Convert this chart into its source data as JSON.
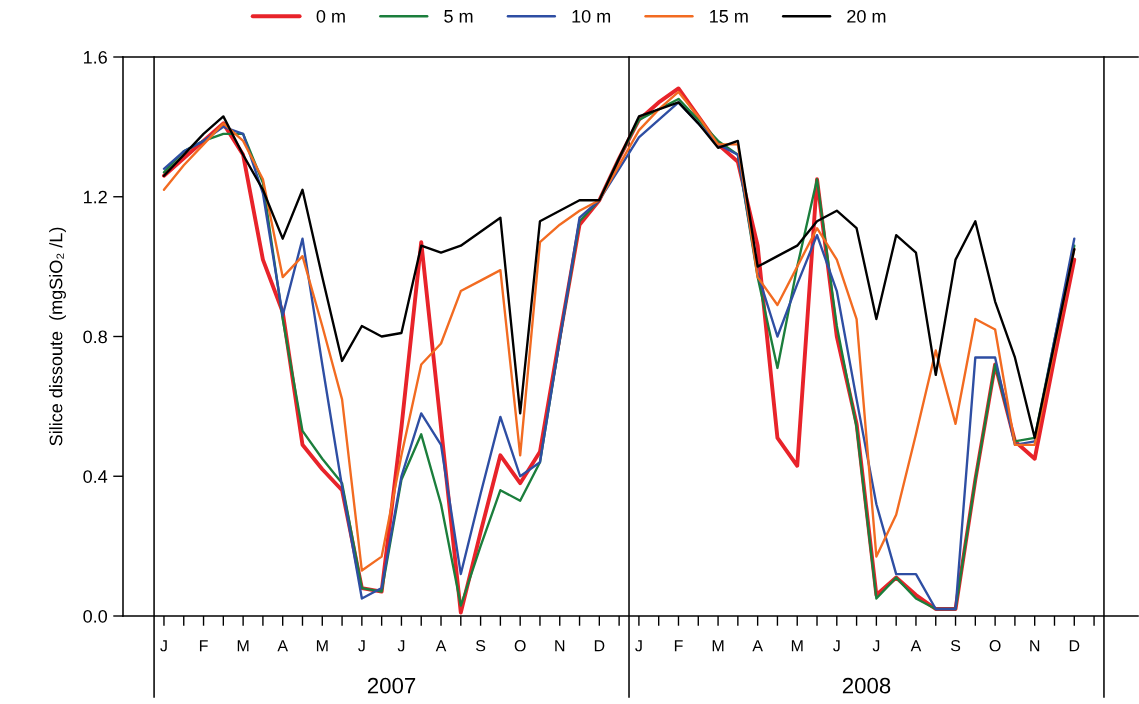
{
  "chart_data": {
    "type": "line",
    "ylabel": "Silice dissoute  (mgSiO₂ /L)",
    "categories": [
      "J",
      null,
      "F",
      null,
      "M",
      null,
      "A",
      null,
      "M",
      null,
      "J",
      null,
      "J",
      null,
      "A",
      null,
      "S",
      null,
      "O",
      null,
      "N",
      null,
      "D",
      null,
      "J",
      null,
      "F",
      null,
      "M",
      null,
      "A",
      null,
      "M",
      null,
      "J",
      null,
      "J",
      null,
      "A",
      null,
      "S",
      null,
      "O",
      null,
      "N",
      null,
      "D",
      null
    ],
    "series": [
      {
        "name": "0 m",
        "color": "#e8232a",
        "values": [
          1.26,
          1.31,
          1.36,
          1.41,
          1.32,
          1.02,
          0.87,
          0.49,
          0.42,
          0.36,
          0.08,
          0.07,
          0.54,
          1.07,
          0.54,
          0.01,
          0.24,
          0.46,
          0.38,
          0.47,
          0.8,
          1.12,
          1.19,
          1.31,
          1.42,
          1.47,
          1.51,
          1.43,
          1.35,
          1.3,
          1.06,
          0.51,
          0.43,
          1.25,
          0.8,
          0.55,
          0.06,
          0.11,
          0.06,
          0.02,
          0.02,
          0.39,
          0.72,
          0.5,
          0.45,
          0.74,
          1.02,
          null
        ]
      },
      {
        "name": "5 m",
        "color": "#1b7e3c",
        "values": [
          1.27,
          1.33,
          1.36,
          1.38,
          1.38,
          1.24,
          0.85,
          0.53,
          0.45,
          0.38,
          0.08,
          0.07,
          0.39,
          0.52,
          0.32,
          0.03,
          0.2,
          0.36,
          0.33,
          0.44,
          0.79,
          1.13,
          1.19,
          1.31,
          1.42,
          1.45,
          1.48,
          1.42,
          1.36,
          1.32,
          0.97,
          0.71,
          1.0,
          1.25,
          0.83,
          0.54,
          0.05,
          0.11,
          0.05,
          0.02,
          0.02,
          0.39,
          0.72,
          0.5,
          0.51,
          0.79,
          1.06,
          null
        ]
      },
      {
        "name": "10 m",
        "color": "#2e4ea3",
        "values": [
          1.28,
          1.33,
          1.36,
          1.4,
          1.38,
          1.21,
          0.86,
          1.08,
          0.72,
          0.37,
          0.05,
          0.08,
          0.4,
          0.58,
          0.49,
          0.12,
          0.35,
          0.57,
          0.4,
          0.44,
          0.79,
          1.14,
          1.19,
          1.28,
          1.37,
          1.42,
          1.47,
          1.41,
          1.35,
          1.32,
          0.98,
          0.8,
          0.95,
          1.09,
          0.93,
          0.62,
          0.32,
          0.12,
          0.12,
          0.02,
          0.02,
          0.74,
          0.74,
          0.49,
          0.5,
          0.79,
          1.08,
          null
        ]
      },
      {
        "name": "15 m",
        "color": "#f26b21",
        "values": [
          1.22,
          1.29,
          1.35,
          1.41,
          1.36,
          1.25,
          0.97,
          1.03,
          0.83,
          0.62,
          0.13,
          0.17,
          0.46,
          0.72,
          0.78,
          0.93,
          0.96,
          0.99,
          0.46,
          1.07,
          1.12,
          1.16,
          1.19,
          1.29,
          1.39,
          1.45,
          1.5,
          1.43,
          1.35,
          1.35,
          0.97,
          0.89,
          1.0,
          1.11,
          1.02,
          0.85,
          0.17,
          0.29,
          0.52,
          0.76,
          0.55,
          0.85,
          0.82,
          0.49,
          0.49,
          0.77,
          1.05,
          null
        ]
      },
      {
        "name": "20 m",
        "color": "#000000",
        "values": [
          1.26,
          1.32,
          1.38,
          1.43,
          1.32,
          1.22,
          1.08,
          1.22,
          0.97,
          0.73,
          0.83,
          0.8,
          0.81,
          1.06,
          1.04,
          1.06,
          1.1,
          1.14,
          0.58,
          1.13,
          1.16,
          1.19,
          1.19,
          1.31,
          1.43,
          1.45,
          1.47,
          1.41,
          1.34,
          1.36,
          1.0,
          1.03,
          1.06,
          1.13,
          1.16,
          1.11,
          0.85,
          1.09,
          1.04,
          0.69,
          1.02,
          1.13,
          0.9,
          0.74,
          0.51,
          0.78,
          1.05,
          null
        ]
      }
    ],
    "ylim": [
      0,
      1.6
    ],
    "yticks": [
      {
        "value": 0,
        "label": "0.0"
      },
      0.4,
      0.8,
      1.2,
      1.6
    ],
    "annotations": [
      "2007",
      "2008"
    ],
    "legend": "top",
    "grid": false,
    "marker": "none",
    "line_style": "solid"
  }
}
